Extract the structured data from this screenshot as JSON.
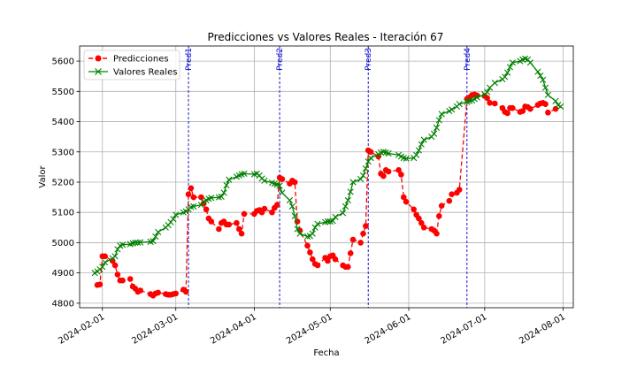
{
  "chart_data": {
    "type": "line",
    "title": "Predicciones vs Valores Reales - Iteración 67",
    "xlabel": "Fecha",
    "ylabel": "Valor",
    "xlim": [
      "2024-01-23",
      "2024-08-05"
    ],
    "ylim": [
      4785,
      5650
    ],
    "grid": true,
    "legend_position": "top-left",
    "x_ticks": [
      "2024-02-01",
      "2024-03-01",
      "2024-04-01",
      "2024-05-01",
      "2024-06-01",
      "2024-07-01",
      "2024-08-01"
    ],
    "y_ticks": [
      4800,
      4900,
      5000,
      5100,
      5200,
      5300,
      5400,
      5500,
      5600
    ],
    "vertical_lines": [
      {
        "date": "2024-03-06",
        "label": "Pred1"
      },
      {
        "date": "2024-04-11",
        "label": "Pred2"
      },
      {
        "date": "2024-05-16",
        "label": "Pred3"
      },
      {
        "date": "2024-06-24",
        "label": "Pred4"
      }
    ],
    "series": [
      {
        "name": "Predicciones",
        "color": "#ff0000",
        "marker": "circle",
        "linestyle": "dashed",
        "points": [
          [
            "2024-01-30",
            4860
          ],
          [
            "2024-01-31",
            4862
          ],
          [
            "2024-02-01",
            4955
          ],
          [
            "2024-02-02",
            4955
          ],
          [
            "2024-02-05",
            4940
          ],
          [
            "2024-02-06",
            4925
          ],
          [
            "2024-02-07",
            4895
          ],
          [
            "2024-02-08",
            4875
          ],
          [
            "2024-02-09",
            4875
          ],
          [
            "2024-02-12",
            4880
          ],
          [
            "2024-02-13",
            4855
          ],
          [
            "2024-02-14",
            4848
          ],
          [
            "2024-02-15",
            4838
          ],
          [
            "2024-02-16",
            4842
          ],
          [
            "2024-02-20",
            4830
          ],
          [
            "2024-02-21",
            4825
          ],
          [
            "2024-02-22",
            4832
          ],
          [
            "2024-02-23",
            4835
          ],
          [
            "2024-02-26",
            4830
          ],
          [
            "2024-02-27",
            4828
          ],
          [
            "2024-02-28",
            4828
          ],
          [
            "2024-02-29",
            4830
          ],
          [
            "2024-03-01",
            4832
          ],
          [
            "2024-03-04",
            4845
          ],
          [
            "2024-03-05",
            4838
          ],
          [
            "2024-03-06",
            5160
          ],
          [
            "2024-03-07",
            5180
          ],
          [
            "2024-03-08",
            5150
          ],
          [
            "2024-03-11",
            5150
          ],
          [
            "2024-03-12",
            5130
          ],
          [
            "2024-03-13",
            5110
          ],
          [
            "2024-03-14",
            5080
          ],
          [
            "2024-03-15",
            5070
          ],
          [
            "2024-03-18",
            5045
          ],
          [
            "2024-03-19",
            5065
          ],
          [
            "2024-03-20",
            5070
          ],
          [
            "2024-03-21",
            5060
          ],
          [
            "2024-03-22",
            5060
          ],
          [
            "2024-03-25",
            5065
          ],
          [
            "2024-03-26",
            5045
          ],
          [
            "2024-03-27",
            5030
          ],
          [
            "2024-03-28",
            5095
          ],
          [
            "2024-04-01",
            5095
          ],
          [
            "2024-04-02",
            5105
          ],
          [
            "2024-04-03",
            5108
          ],
          [
            "2024-04-04",
            5100
          ],
          [
            "2024-04-05",
            5112
          ],
          [
            "2024-04-08",
            5100
          ],
          [
            "2024-04-09",
            5115
          ],
          [
            "2024-04-10",
            5125
          ],
          [
            "2024-04-11",
            5215
          ],
          [
            "2024-04-12",
            5210
          ],
          [
            "2024-04-15",
            5195
          ],
          [
            "2024-04-16",
            5205
          ],
          [
            "2024-04-17",
            5200
          ],
          [
            "2024-04-18",
            5070
          ],
          [
            "2024-04-19",
            5040
          ],
          [
            "2024-04-22",
            4990
          ],
          [
            "2024-04-23",
            4968
          ],
          [
            "2024-04-24",
            4945
          ],
          [
            "2024-04-25",
            4930
          ],
          [
            "2024-04-26",
            4925
          ],
          [
            "2024-04-29",
            4950
          ],
          [
            "2024-04-30",
            4940
          ],
          [
            "2024-05-01",
            4955
          ],
          [
            "2024-05-02",
            4958
          ],
          [
            "2024-05-03",
            4945
          ],
          [
            "2024-05-06",
            4925
          ],
          [
            "2024-05-07",
            4920
          ],
          [
            "2024-05-08",
            4920
          ],
          [
            "2024-05-09",
            4965
          ],
          [
            "2024-05-10",
            5010
          ],
          [
            "2024-05-13",
            5000
          ],
          [
            "2024-05-14",
            5030
          ],
          [
            "2024-05-15",
            5055
          ],
          [
            "2024-05-16",
            5305
          ],
          [
            "2024-05-17",
            5300
          ],
          [
            "2024-05-20",
            5285
          ],
          [
            "2024-05-21",
            5228
          ],
          [
            "2024-05-22",
            5220
          ],
          [
            "2024-05-23",
            5240
          ],
          [
            "2024-05-24",
            5235
          ],
          [
            "2024-05-28",
            5240
          ],
          [
            "2024-05-29",
            5225
          ],
          [
            "2024-05-30",
            5150
          ],
          [
            "2024-05-31",
            5135
          ],
          [
            "2024-06-03",
            5110
          ],
          [
            "2024-06-04",
            5092
          ],
          [
            "2024-06-05",
            5080
          ],
          [
            "2024-06-06",
            5065
          ],
          [
            "2024-06-07",
            5050
          ],
          [
            "2024-06-10",
            5045
          ],
          [
            "2024-06-11",
            5040
          ],
          [
            "2024-06-12",
            5030
          ],
          [
            "2024-06-13",
            5088
          ],
          [
            "2024-06-14",
            5122
          ],
          [
            "2024-06-17",
            5138
          ],
          [
            "2024-06-18",
            5160
          ],
          [
            "2024-06-20",
            5165
          ],
          [
            "2024-06-21",
            5175
          ],
          [
            "2024-06-24",
            5475
          ],
          [
            "2024-06-25",
            5480
          ],
          [
            "2024-06-26",
            5488
          ],
          [
            "2024-06-27",
            5490
          ],
          [
            "2024-06-28",
            5486
          ],
          [
            "2024-07-01",
            5485
          ],
          [
            "2024-07-02",
            5478
          ],
          [
            "2024-07-03",
            5462
          ],
          [
            "2024-07-05",
            5460
          ],
          [
            "2024-07-08",
            5445
          ],
          [
            "2024-07-09",
            5432
          ],
          [
            "2024-07-10",
            5428
          ],
          [
            "2024-07-11",
            5445
          ],
          [
            "2024-07-12",
            5445
          ],
          [
            "2024-07-15",
            5432
          ],
          [
            "2024-07-16",
            5435
          ],
          [
            "2024-07-17",
            5450
          ],
          [
            "2024-07-18",
            5448
          ],
          [
            "2024-07-19",
            5442
          ],
          [
            "2024-07-22",
            5455
          ],
          [
            "2024-07-23",
            5460
          ],
          [
            "2024-07-24",
            5462
          ],
          [
            "2024-07-25",
            5458
          ],
          [
            "2024-07-26",
            5430
          ],
          [
            "2024-07-29",
            5442
          ]
        ]
      },
      {
        "name": "Valores Reales",
        "color": "#008000",
        "marker": "x",
        "linestyle": "solid",
        "points": [
          [
            "2024-01-29",
            4900
          ],
          [
            "2024-01-30",
            4905
          ],
          [
            "2024-01-31",
            4912
          ],
          [
            "2024-02-01",
            4920
          ],
          [
            "2024-02-02",
            4935
          ],
          [
            "2024-02-05",
            4948
          ],
          [
            "2024-02-06",
            4955
          ],
          [
            "2024-02-07",
            4978
          ],
          [
            "2024-02-08",
            4990
          ],
          [
            "2024-02-09",
            4993
          ],
          [
            "2024-02-12",
            4995
          ],
          [
            "2024-02-13",
            4998
          ],
          [
            "2024-02-14",
            5000
          ],
          [
            "2024-02-15",
            5000
          ],
          [
            "2024-02-16",
            5001
          ],
          [
            "2024-02-20",
            5003
          ],
          [
            "2024-02-21",
            5005
          ],
          [
            "2024-02-22",
            5020
          ],
          [
            "2024-02-23",
            5035
          ],
          [
            "2024-02-26",
            5050
          ],
          [
            "2024-02-27",
            5058
          ],
          [
            "2024-02-28",
            5068
          ],
          [
            "2024-02-29",
            5078
          ],
          [
            "2024-03-01",
            5092
          ],
          [
            "2024-03-04",
            5100
          ],
          [
            "2024-03-05",
            5103
          ],
          [
            "2024-03-06",
            5110
          ],
          [
            "2024-03-07",
            5118
          ],
          [
            "2024-03-08",
            5120
          ],
          [
            "2024-03-11",
            5125
          ],
          [
            "2024-03-12",
            5135
          ],
          [
            "2024-03-13",
            5140
          ],
          [
            "2024-03-14",
            5145
          ],
          [
            "2024-03-15",
            5148
          ],
          [
            "2024-03-18",
            5150
          ],
          [
            "2024-03-19",
            5152
          ],
          [
            "2024-03-20",
            5165
          ],
          [
            "2024-03-21",
            5190
          ],
          [
            "2024-03-22",
            5208
          ],
          [
            "2024-03-25",
            5218
          ],
          [
            "2024-03-26",
            5222
          ],
          [
            "2024-03-27",
            5226
          ],
          [
            "2024-03-28",
            5228
          ],
          [
            "2024-04-01",
            5226
          ],
          [
            "2024-04-02",
            5228
          ],
          [
            "2024-04-03",
            5222
          ],
          [
            "2024-04-04",
            5212
          ],
          [
            "2024-04-05",
            5205
          ],
          [
            "2024-04-08",
            5198
          ],
          [
            "2024-04-09",
            5195
          ],
          [
            "2024-04-10",
            5192
          ],
          [
            "2024-04-11",
            5188
          ],
          [
            "2024-04-12",
            5165
          ],
          [
            "2024-04-15",
            5140
          ],
          [
            "2024-04-16",
            5120
          ],
          [
            "2024-04-17",
            5088
          ],
          [
            "2024-04-18",
            5045
          ],
          [
            "2024-04-19",
            5030
          ],
          [
            "2024-04-22",
            5020
          ],
          [
            "2024-04-23",
            5022
          ],
          [
            "2024-04-24",
            5030
          ],
          [
            "2024-04-25",
            5050
          ],
          [
            "2024-04-26",
            5062
          ],
          [
            "2024-04-29",
            5068
          ],
          [
            "2024-04-30",
            5070
          ],
          [
            "2024-05-01",
            5070
          ],
          [
            "2024-05-02",
            5072
          ],
          [
            "2024-05-03",
            5085
          ],
          [
            "2024-05-06",
            5098
          ],
          [
            "2024-05-07",
            5120
          ],
          [
            "2024-05-08",
            5140
          ],
          [
            "2024-05-09",
            5168
          ],
          [
            "2024-05-10",
            5200
          ],
          [
            "2024-05-13",
            5210
          ],
          [
            "2024-05-14",
            5222
          ],
          [
            "2024-05-15",
            5245
          ],
          [
            "2024-05-16",
            5268
          ],
          [
            "2024-05-17",
            5280
          ],
          [
            "2024-05-20",
            5292
          ],
          [
            "2024-05-21",
            5298
          ],
          [
            "2024-05-22",
            5300
          ],
          [
            "2024-05-23",
            5298
          ],
          [
            "2024-05-24",
            5295
          ],
          [
            "2024-05-28",
            5290
          ],
          [
            "2024-05-29",
            5285
          ],
          [
            "2024-05-30",
            5280
          ],
          [
            "2024-05-31",
            5278
          ],
          [
            "2024-06-03",
            5280
          ],
          [
            "2024-06-04",
            5290
          ],
          [
            "2024-06-05",
            5305
          ],
          [
            "2024-06-06",
            5325
          ],
          [
            "2024-06-07",
            5340
          ],
          [
            "2024-06-10",
            5350
          ],
          [
            "2024-06-11",
            5360
          ],
          [
            "2024-06-12",
            5380
          ],
          [
            "2024-06-13",
            5405
          ],
          [
            "2024-06-14",
            5425
          ],
          [
            "2024-06-17",
            5435
          ],
          [
            "2024-06-18",
            5440
          ],
          [
            "2024-06-20",
            5450
          ],
          [
            "2024-06-21",
            5458
          ],
          [
            "2024-06-24",
            5465
          ],
          [
            "2024-06-25",
            5468
          ],
          [
            "2024-06-26",
            5470
          ],
          [
            "2024-06-27",
            5475
          ],
          [
            "2024-06-28",
            5480
          ],
          [
            "2024-07-01",
            5490
          ],
          [
            "2024-07-02",
            5498
          ],
          [
            "2024-07-03",
            5512
          ],
          [
            "2024-07-05",
            5528
          ],
          [
            "2024-07-08",
            5540
          ],
          [
            "2024-07-09",
            5548
          ],
          [
            "2024-07-10",
            5562
          ],
          [
            "2024-07-11",
            5580
          ],
          [
            "2024-07-12",
            5595
          ],
          [
            "2024-07-15",
            5600
          ],
          [
            "2024-07-16",
            5605
          ],
          [
            "2024-07-17",
            5608
          ],
          [
            "2024-07-18",
            5605
          ],
          [
            "2024-07-19",
            5595
          ],
          [
            "2024-07-22",
            5565
          ],
          [
            "2024-07-23",
            5552
          ],
          [
            "2024-07-24",
            5538
          ],
          [
            "2024-07-25",
            5512
          ],
          [
            "2024-07-26",
            5488
          ],
          [
            "2024-07-29",
            5468
          ],
          [
            "2024-07-30",
            5455
          ],
          [
            "2024-07-31",
            5450
          ]
        ]
      }
    ]
  }
}
